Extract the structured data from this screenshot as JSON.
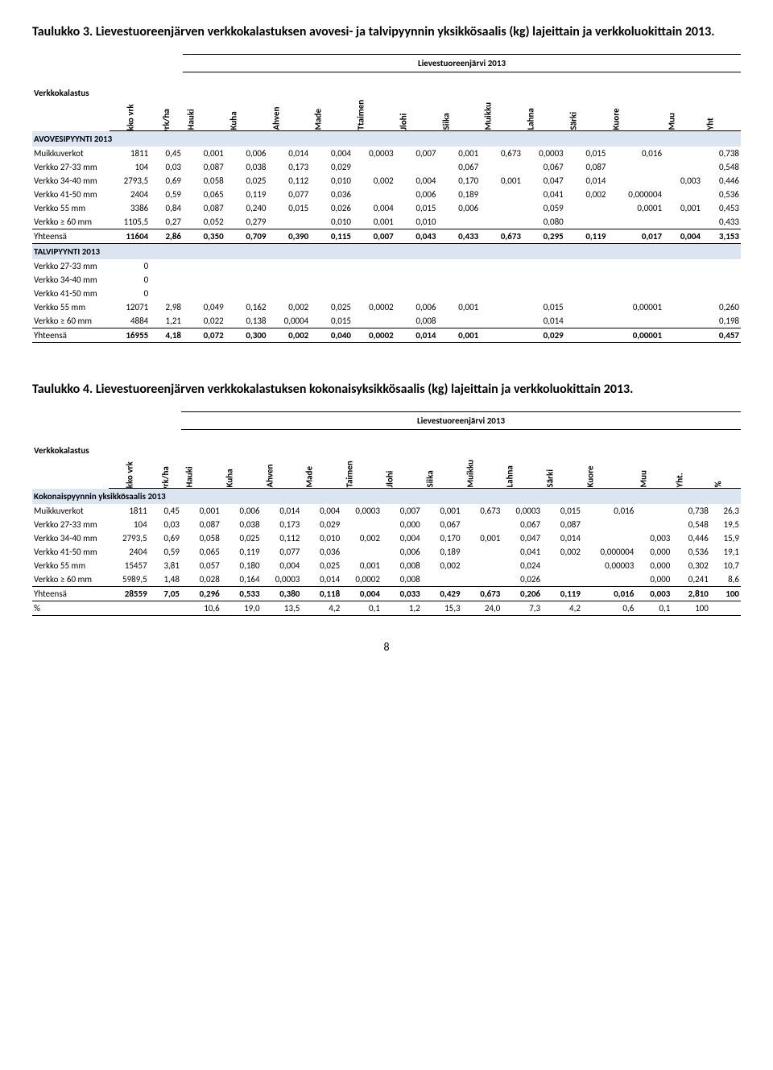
{
  "colors": {
    "section_bg": "#dbe5f1",
    "text": "#000000",
    "bg": "#ffffff"
  },
  "typography": {
    "font_family": "Calibri",
    "caption_fontsize_pt": 12,
    "body_fontsize_pt": 8.5
  },
  "page_number": "8",
  "table1": {
    "caption": "Taulukko 3. Lievestuoreenjärven verkkokalastuksen avovesi- ja talvipyynnin yksikkösaalis (kg) lajeittain ja verkkoluokittain 2013.",
    "left_header": "Verkkokalastus",
    "lake_title": "Lievestuoreenjärvi 2013",
    "columns": [
      "Verkko vrk",
      "Vvrk/ha",
      "Hauki",
      "Kuha",
      "Ahven",
      "Made",
      "Ttaimen",
      "Jlohi",
      "Siika",
      "Muikku",
      "Lahna",
      "Särki",
      "Kuore",
      "Muu",
      "Yht"
    ],
    "sections": [
      {
        "title": "AVOVESIPYYNTI 2013",
        "rows": [
          {
            "label": "Muikkuverkot",
            "v": [
              "1811",
              "0,45",
              "0,001",
              "0,006",
              "0,014",
              "0,004",
              "0,0003",
              "0,007",
              "0,001",
              "0,673",
              "0,0003",
              "0,015",
              "0,016",
              "",
              "0,738"
            ]
          },
          {
            "label": "Verkko 27-33 mm",
            "v": [
              "104",
              "0,03",
              "0,087",
              "0,038",
              "0,173",
              "0,029",
              "",
              "",
              "0,067",
              "",
              "0,067",
              "0,087",
              "",
              "",
              "0,548"
            ]
          },
          {
            "label": "Verkko 34-40 mm",
            "v": [
              "2793,5",
              "0,69",
              "0,058",
              "0,025",
              "0,112",
              "0,010",
              "0,002",
              "0,004",
              "0,170",
              "0,001",
              "0,047",
              "0,014",
              "",
              "0,003",
              "0,446"
            ]
          },
          {
            "label": "Verkko 41-50 mm",
            "v": [
              "2404",
              "0,59",
              "0,065",
              "0,119",
              "0,077",
              "0,036",
              "",
              "0,006",
              "0,189",
              "",
              "0,041",
              "0,002",
              "0,000004",
              "",
              "0,536"
            ]
          },
          {
            "label": "Verkko 55 mm",
            "v": [
              "3386",
              "0,84",
              "0,087",
              "0,240",
              "0,015",
              "0,026",
              "0,004",
              "0,015",
              "0,006",
              "",
              "0,059",
              "",
              "0,0001",
              "0,001",
              "0,453"
            ]
          },
          {
            "label": "Verkko ≥ 60 mm",
            "v": [
              "1105,5",
              "0,27",
              "0,052",
              "0,279",
              "",
              "0,010",
              "0,001",
              "0,010",
              "",
              "",
              "0,080",
              "",
              "",
              "",
              "0,433"
            ]
          }
        ],
        "total": {
          "label": "Yhteensä",
          "v": [
            "11604",
            "2,86",
            "0,350",
            "0,709",
            "0,390",
            "0,115",
            "0,007",
            "0,043",
            "0,433",
            "0,673",
            "0,295",
            "0,119",
            "0,017",
            "0,004",
            "3,153"
          ]
        }
      },
      {
        "title": "TALVIPYYNTI 2013",
        "rows": [
          {
            "label": "Verkko 27-33 mm",
            "v": [
              "0",
              "",
              "",
              "",
              "",
              "",
              "",
              "",
              "",
              "",
              "",
              "",
              "",
              "",
              ""
            ]
          },
          {
            "label": "Verkko 34-40 mm",
            "v": [
              "0",
              "",
              "",
              "",
              "",
              "",
              "",
              "",
              "",
              "",
              "",
              "",
              "",
              "",
              ""
            ]
          },
          {
            "label": "Verkko 41-50 mm",
            "v": [
              "0",
              "",
              "",
              "",
              "",
              "",
              "",
              "",
              "",
              "",
              "",
              "",
              "",
              "",
              ""
            ]
          },
          {
            "label": "Verkko 55 mm",
            "v": [
              "12071",
              "2,98",
              "0,049",
              "0,162",
              "0,002",
              "0,025",
              "0,0002",
              "0,006",
              "0,001",
              "",
              "0,015",
              "",
              "0,00001",
              "",
              "0,260"
            ]
          },
          {
            "label": "Verkko ≥ 60 mm",
            "v": [
              "4884",
              "1,21",
              "0,022",
              "0,138",
              "0,0004",
              "0,015",
              "",
              "0,008",
              "",
              "",
              "0,014",
              "",
              "",
              "",
              "0,198"
            ]
          }
        ],
        "total": {
          "label": "Yhteensä",
          "v": [
            "16955",
            "4,18",
            "0,072",
            "0,300",
            "0,002",
            "0,040",
            "0,0002",
            "0,014",
            "0,001",
            "",
            "0,029",
            "",
            "0,00001",
            "",
            "0,457"
          ]
        }
      }
    ]
  },
  "table2": {
    "caption": "Taulukko 4. Lievestuoreenjärven verkkokalastuksen kokonaisyksikkösaalis (kg) lajeittain ja verkkoluokittain 2013.",
    "left_header": "Verkkokalastus",
    "lake_title": "Lievestuoreenjärvi 2013",
    "columns": [
      "Verkko vrk",
      "Vvrk/ha",
      "Hauki",
      "Kuha",
      "Ahven",
      "Made",
      "Taimen",
      "Jlohi",
      "Siika",
      "Muikku",
      "Lahna",
      "Särki",
      "Kuore",
      "Muu",
      "Yht.",
      "%"
    ],
    "sections": [
      {
        "title": "Kokonaispyynnin yksikkösaalis 2013",
        "rows": [
          {
            "label": "Muikkuverkot",
            "v": [
              "1811",
              "0,45",
              "0,001",
              "0,006",
              "0,014",
              "0,004",
              "0,0003",
              "0,007",
              "0,001",
              "0,673",
              "0,0003",
              "0,015",
              "0,016",
              "",
              "0,738",
              "26,3"
            ]
          },
          {
            "label": "Verkko 27-33 mm",
            "v": [
              "104",
              "0,03",
              "0,087",
              "0,038",
              "0,173",
              "0,029",
              "",
              "0,000",
              "0,067",
              "",
              "0,067",
              "0,087",
              "",
              "",
              "0,548",
              "19,5"
            ]
          },
          {
            "label": "Verkko 34-40 mm",
            "v": [
              "2793,5",
              "0,69",
              "0,058",
              "0,025",
              "0,112",
              "0,010",
              "0,002",
              "0,004",
              "0,170",
              "0,001",
              "0,047",
              "0,014",
              "",
              "0,003",
              "0,446",
              "15,9"
            ]
          },
          {
            "label": "Verkko 41-50 mm",
            "v": [
              "2404",
              "0,59",
              "0,065",
              "0,119",
              "0,077",
              "0,036",
              "",
              "0,006",
              "0,189",
              "",
              "0,041",
              "0,002",
              "0,000004",
              "0,000",
              "0,536",
              "19,1"
            ]
          },
          {
            "label": "Verkko 55 mm",
            "v": [
              "15457",
              "3,81",
              "0,057",
              "0,180",
              "0,004",
              "0,025",
              "0,001",
              "0,008",
              "0,002",
              "",
              "0,024",
              "",
              "0,00003",
              "0,000",
              "0,302",
              "10,7"
            ]
          },
          {
            "label": "Verkko ≥ 60 mm",
            "v": [
              "5989,5",
              "1,48",
              "0,028",
              "0,164",
              "0,0003",
              "0,014",
              "0,0002",
              "0,008",
              "",
              "",
              "0,026",
              "",
              "",
              "0,000",
              "0,241",
              "8,6"
            ]
          }
        ],
        "total": {
          "label": "Yhteensä",
          "v": [
            "28559",
            "7,05",
            "0,296",
            "0,533",
            "0,380",
            "0,118",
            "0,004",
            "0,033",
            "0,429",
            "0,673",
            "0,206",
            "0,119",
            "0,016",
            "0,003",
            "2,810",
            "100"
          ]
        },
        "pct": {
          "label": "%",
          "v": [
            "",
            "",
            "10,6",
            "19,0",
            "13,5",
            "4,2",
            "0,1",
            "1,2",
            "15,3",
            "24,0",
            "7,3",
            "4,2",
            "0,6",
            "0,1",
            "100",
            ""
          ]
        }
      }
    ]
  }
}
